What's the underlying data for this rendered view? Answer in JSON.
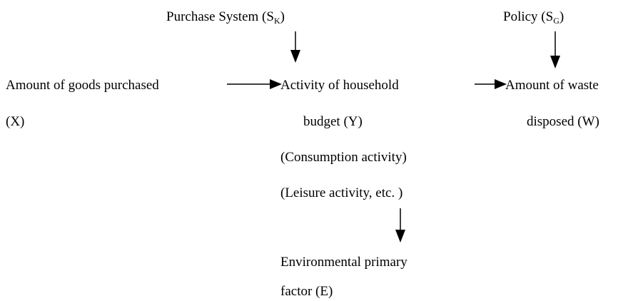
{
  "nodes": [
    {
      "text": "Purchase System (S",
      "sub": "K",
      "close": ")"
    },
    {
      "text": "Policy (S",
      "sub": "G",
      "close": ")"
    },
    {
      "lines": [
        "Amount of goods purchased",
        "(X)"
      ]
    },
    {
      "lines": [
        "Activity of household",
        "budget (Y)",
        "(Consumption activity)",
        "(Leisure activity, etc. )"
      ]
    },
    {
      "lines": [
        "Amount of waste",
        "disposed (W)"
      ]
    },
    {
      "lines": [
        "Environmental primary",
        "factor (E)"
      ]
    }
  ]
}
